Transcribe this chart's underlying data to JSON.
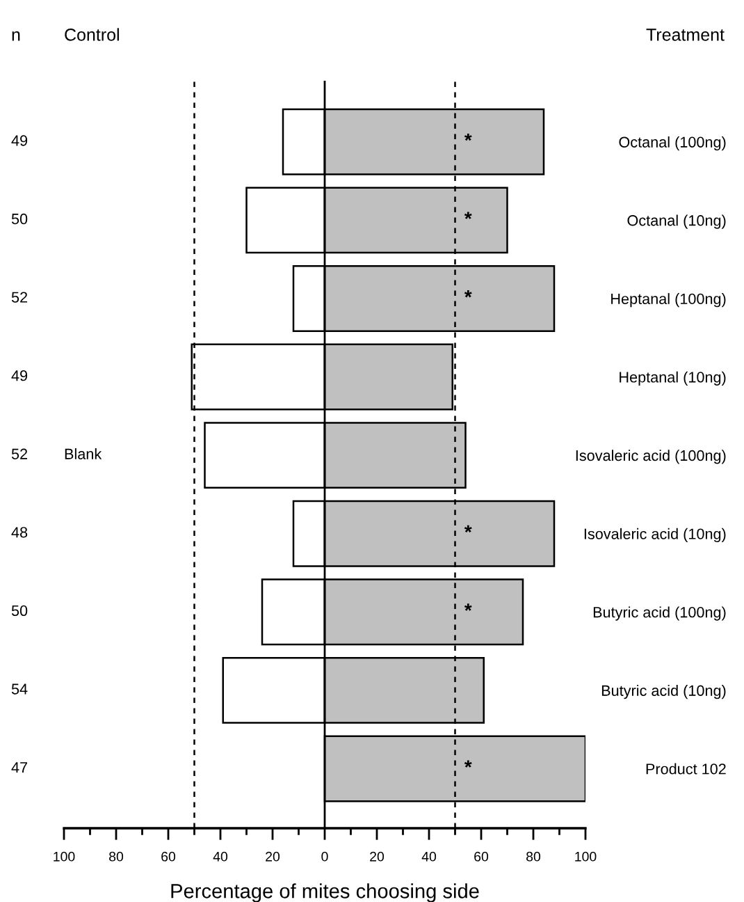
{
  "chart_data": {
    "type": "bar",
    "orientation": "horizontal",
    "xlabel": "Percentage of mites choosing side",
    "categories": [
      "Octanal (100ng)",
      "Octanal (10ng)",
      "Heptanal (100ng)",
      "Heptanal (10ng)",
      "Isovaleric acid (100ng)",
      "Isovaleric acid (10ng)",
      "Butyric acid (100ng)",
      "Butyric acid (10ng)",
      "Product 102"
    ],
    "series": [
      {
        "color": "#ffffff",
        "values": [
          -16,
          -30,
          -12,
          -51,
          -46,
          -12,
          -24,
          -39,
          0
        ]
      },
      {
        "color": "#c0c0c0",
        "values": [
          84,
          70,
          88,
          49,
          54,
          88,
          76,
          61,
          100
        ],
        "value_labels": [
          "*",
          "*",
          "*",
          null,
          null,
          "*",
          "*",
          null,
          "*"
        ]
      }
    ],
    "xlim": [
      -100,
      100
    ],
    "xticks": [
      {
        "value": -100,
        "label": "100"
      },
      {
        "value": -90,
        "label": null
      },
      {
        "value": -80,
        "label": "80"
      },
      {
        "value": -70,
        "label": null
      },
      {
        "value": -60,
        "label": "60"
      },
      {
        "value": -50,
        "label": null
      },
      {
        "value": -40,
        "label": "40"
      },
      {
        "value": -30,
        "label": null
      },
      {
        "value": -20,
        "label": "20"
      },
      {
        "value": -10,
        "label": null
      },
      0,
      {
        "value": 10,
        "label": null
      },
      20,
      {
        "value": 30,
        "label": null
      },
      40,
      {
        "value": 50,
        "label": null
      },
      60,
      {
        "value": 70,
        "label": null
      },
      80,
      {
        "value": 90,
        "label": null
      },
      100
    ],
    "ref_lines": [
      {
        "axis": "x",
        "value": -50,
        "line_style": "dashed"
      },
      {
        "axis": "x",
        "value": 50,
        "line_style": "dashed"
      },
      {
        "axis": "x",
        "value": 0,
        "line_style": "solid"
      }
    ],
    "annotations": [
      "n",
      "Control",
      "Treatment",
      "49",
      "50",
      "52",
      "49",
      "52",
      "48",
      "50",
      "54",
      "47",
      "Blank"
    ],
    "stacked": true,
    "grid": false,
    "legend": false
  }
}
